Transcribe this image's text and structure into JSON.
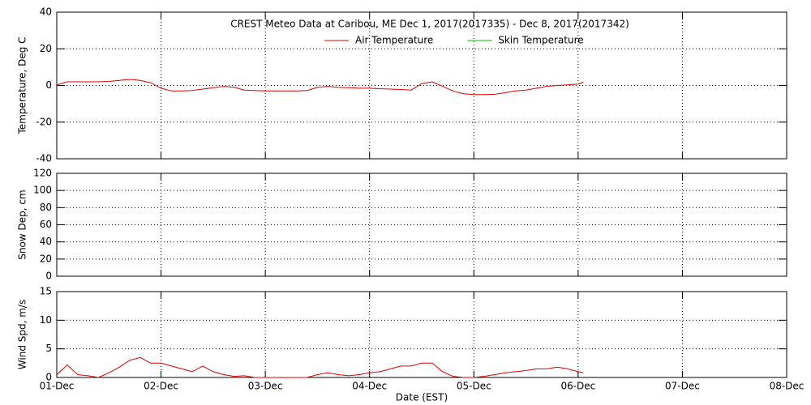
{
  "chart_data": [
    {
      "type": "line",
      "title": "CREST Meteo Data at Caribou, ME   Dec  1, 2017(2017335) - Dec  8, 2017(2017342)",
      "ylabel": "Temperature, Deg C",
      "x": [
        0,
        0.1,
        0.2,
        0.3,
        0.4,
        0.5,
        0.6,
        0.7,
        0.8,
        0.9,
        1.0,
        1.1,
        1.2,
        1.3,
        1.4,
        1.5,
        1.6,
        1.7,
        1.8,
        1.9,
        2.0,
        2.1,
        2.2,
        2.3,
        2.4,
        2.5,
        2.6,
        2.7,
        2.8,
        2.9,
        3.0,
        3.1,
        3.2,
        3.3,
        3.4,
        3.5,
        3.6,
        3.7,
        3.8,
        3.9,
        4.0,
        4.1,
        4.2,
        4.3,
        4.4,
        4.5,
        4.6,
        4.7,
        4.8,
        4.9,
        5.0,
        5.05
      ],
      "series": [
        {
          "name": "Air Temperature",
          "color": "#dd0000",
          "values": [
            0.2,
            2,
            2,
            2,
            2,
            2.2,
            2.8,
            3.3,
            2.8,
            1.5,
            -1.5,
            -3,
            -3,
            -2.8,
            -2,
            -1.2,
            -0.5,
            -1,
            -2.5,
            -2.8,
            -3,
            -3,
            -3,
            -3,
            -2.8,
            -1,
            -0.5,
            -1,
            -1.2,
            -1.5,
            -1.5,
            -1.8,
            -2,
            -2.2,
            -2.5,
            1,
            2,
            -0.5,
            -3,
            -4.5,
            -5,
            -5,
            -4.8,
            -4,
            -3,
            -2.5,
            -1.5,
            -0.5,
            0,
            0.3,
            0.8,
            1.8
          ]
        },
        {
          "name": "Skin Temperature",
          "color": "#00bb00",
          "values": [
            null,
            null,
            null,
            null,
            null,
            null,
            null,
            null,
            null,
            null,
            null,
            null,
            null,
            null,
            null,
            null,
            null,
            null,
            null,
            null,
            null,
            null,
            null,
            null,
            null,
            null,
            null,
            null,
            null,
            null,
            null,
            null,
            null,
            null,
            null,
            null,
            null,
            null,
            null,
            null,
            null,
            null,
            null,
            null,
            null,
            null,
            null,
            null,
            null,
            null,
            null,
            null
          ]
        }
      ],
      "xlim": [
        0,
        7
      ],
      "xticks": [
        0,
        1,
        2,
        3,
        4,
        5,
        6,
        7
      ],
      "xticklabels": false,
      "ylim": [
        -40,
        40
      ],
      "yticks": [
        -40,
        -20,
        0,
        20,
        40
      ],
      "grid": true,
      "legend": "top"
    },
    {
      "type": "line",
      "ylabel": "Snow Dep, cm",
      "x": [],
      "series": [],
      "xlim": [
        0,
        7
      ],
      "xticks": [
        0,
        1,
        2,
        3,
        4,
        5,
        6,
        7
      ],
      "xticklabels": false,
      "ylim": [
        0,
        120
      ],
      "yticks": [
        0,
        20,
        40,
        60,
        80,
        100,
        120
      ],
      "grid": true
    },
    {
      "type": "line",
      "ylabel": "Wind Spd, m/s",
      "xlabel": "Date (EST)",
      "x": [
        0,
        0.1,
        0.2,
        0.3,
        0.4,
        0.5,
        0.6,
        0.7,
        0.8,
        0.9,
        1.0,
        1.1,
        1.2,
        1.3,
        1.4,
        1.5,
        1.6,
        1.7,
        1.8,
        1.9,
        2.0,
        2.1,
        2.2,
        2.3,
        2.4,
        2.5,
        2.6,
        2.7,
        2.8,
        2.9,
        3.0,
        3.1,
        3.2,
        3.3,
        3.4,
        3.5,
        3.6,
        3.7,
        3.8,
        3.9,
        4.0,
        4.1,
        4.2,
        4.3,
        4.4,
        4.5,
        4.6,
        4.7,
        4.8,
        4.9,
        5.0,
        5.05
      ],
      "series": [
        {
          "color": "#dd0000",
          "values": [
            0.5,
            2.2,
            0.5,
            0.3,
            0,
            0.8,
            1.8,
            3,
            3.5,
            2.5,
            2.5,
            2,
            1.5,
            1,
            2,
            1,
            0.5,
            0.2,
            0.3,
            0,
            0,
            0,
            0,
            0,
            0,
            0.5,
            0.8,
            0.5,
            0.3,
            0.5,
            0.8,
            1,
            1.5,
            2,
            2,
            2.5,
            2.5,
            1,
            0.2,
            0,
            0,
            0.2,
            0.5,
            0.8,
            1,
            1.2,
            1.5,
            1.5,
            1.8,
            1.5,
            1,
            0.8
          ]
        }
      ],
      "xlim": [
        0,
        7
      ],
      "xticks": [
        {
          "value": 0,
          "label": "01-Dec"
        },
        {
          "value": 1,
          "label": "02-Dec"
        },
        {
          "value": 2,
          "label": "03-Dec"
        },
        {
          "value": 3,
          "label": "04-Dec"
        },
        {
          "value": 4,
          "label": "05-Dec"
        },
        {
          "value": 5,
          "label": "06-Dec"
        },
        {
          "value": 6,
          "label": "07-Dec"
        },
        {
          "value": 7,
          "label": "08-Dec"
        }
      ],
      "ylim": [
        0,
        15
      ],
      "yticks": [
        0,
        5,
        10,
        15
      ],
      "grid": true
    }
  ]
}
